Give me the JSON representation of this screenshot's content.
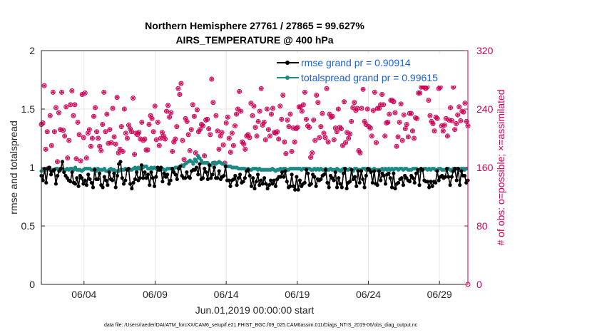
{
  "colors": {
    "rmse": "#000000",
    "spread": "#1b8a84",
    "obs": "#cc0055",
    "legend_text": "#1a5fd6",
    "grid": "#e6e6e6"
  },
  "footnote": "data file: /Users/raeder/DAI/ATM_forcXX/CAM6_setup/f.e21.FHIST_BGC.f09_025.CAM6assim.011/Diags_NTrS_2019-06/obs_diag_output.nc",
  "chart_data": {
    "type": "line",
    "title": [
      "Northern Hemisphere 27761 / 27865 = 99.627%",
      "AIRS_TEMPERATURE @ 400 hPa"
    ],
    "xlabel": "Jun.01,2019 00:00:00 start",
    "ylabel_left": "rmse and totalspread",
    "ylabel_right": "# of obs: o=possible; ×=assimilated",
    "x_range": [
      1.0,
      31.0
    ],
    "x_ticks": [
      {
        "day": 4,
        "label": "06/04"
      },
      {
        "day": 9,
        "label": "06/09"
      },
      {
        "day": 14,
        "label": "06/14"
      },
      {
        "day": 19,
        "label": "06/19"
      },
      {
        "day": 24,
        "label": "06/24"
      },
      {
        "day": 29,
        "label": "06/29"
      }
    ],
    "ylim_left": [
      0,
      2
    ],
    "yticks_left": [
      "0",
      "0.5",
      "1",
      "1.5",
      "2"
    ],
    "ylim_right": [
      0,
      320
    ],
    "yticks_right": [
      "0",
      "80",
      "160",
      "240",
      "320"
    ],
    "legend": {
      "location": "top-right",
      "entries": [
        "rmse grand pr = 0.90914",
        "totalspread grand pr = 0.99615"
      ]
    },
    "series": [
      {
        "name": "rmse",
        "values": [
          0.93,
          0.89,
          0.99,
          0.87,
          0.99,
          1.0,
          0.94,
          0.97,
          0.98,
          0.86,
          0.93,
          0.97,
          0.99,
          1.05,
          0.96,
          0.93,
          0.91,
          0.89,
          0.88,
          0.96,
          0.87,
          0.86,
          0.91,
          0.84,
          0.93,
          0.91,
          0.86,
          0.89,
          0.85,
          0.94,
          0.9,
          0.87,
          0.83,
          0.98,
          0.9,
          0.9,
          0.95,
          0.85,
          0.83,
          0.92,
          0.89,
          0.85,
          0.96,
          0.9,
          0.89,
          0.95,
          0.83,
          0.93,
          1.03,
          1.05,
          0.91,
          0.86,
          0.89,
          0.98,
          0.99,
          0.86,
          0.82,
          0.87,
          0.9,
          0.96,
          0.89,
          0.91,
          1.02,
          0.91,
          0.96,
          0.91,
          0.94,
          0.85,
          0.96,
          0.91,
          0.84,
          0.92,
          1.0,
          0.98,
          1.0,
          0.88,
          0.95,
          0.92,
          0.94,
          0.86,
          0.89,
          0.99,
          0.96,
          0.94,
          0.9,
          0.99,
          1.01,
          0.93,
          0.91,
          0.91,
          0.96,
          0.92,
          0.91,
          0.97,
          0.98,
          0.98,
          1.0,
          0.94,
          1.03,
          0.9,
          0.91,
          0.99,
          0.96,
          0.9,
          1.02,
          0.91,
          0.94,
          1.0,
          0.91,
          0.91,
          0.97,
          0.9,
          0.92,
          0.93,
          1.01,
          0.89,
          0.89,
          0.84,
          0.89,
          0.9,
          0.93,
          0.85,
          0.91,
          0.94,
          0.87,
          0.88,
          0.91,
          0.97,
          0.98,
          0.93,
          0.84,
          0.91,
          0.82,
          0.88,
          0.94,
          0.85,
          0.89,
          0.86,
          0.91,
          0.86,
          0.82,
          0.85,
          0.89,
          0.86,
          0.89,
          0.84,
          0.9,
          0.92,
          0.92,
          0.96,
          0.92,
          0.97,
          0.88,
          0.83,
          0.84,
          0.94,
          0.84,
          0.81,
          0.92,
          0.81,
          0.89,
          0.84,
          0.86,
          0.87,
          0.98,
          0.95,
          0.85,
          0.86,
          0.94,
          0.92,
          0.84,
          0.9,
          0.89,
          0.9,
          0.93,
          0.94,
          0.98,
          0.87,
          0.83,
          0.93,
          0.91,
          0.89,
          0.96,
          0.83,
          0.91,
          0.86,
          0.83,
          0.95,
          0.99,
          0.82,
          0.87,
          0.88,
          0.98,
          0.9,
          0.92,
          0.84,
          0.97,
          0.87,
          0.97,
          0.9,
          0.83,
          0.93,
          0.99,
          0.98,
          0.96,
          0.87,
          0.97,
          0.86,
          0.85,
          0.97,
          0.89,
          0.95,
          0.93,
          0.86,
          0.94,
          0.95,
          0.91,
          0.83,
          0.95,
          0.82,
          0.86,
          0.87,
          0.9,
          0.91,
          0.85,
          0.93,
          0.91,
          0.89,
          0.88,
          0.93,
          0.91,
          0.87,
          0.95,
          0.98,
          0.85,
          0.99,
          0.98,
          0.89,
          0.88,
          0.88,
          0.83,
          0.88,
          0.84,
          0.88,
          0.87,
          0.97,
          0.89,
          0.92,
          0.93,
          0.91,
          0.92,
          0.99,
          0.92,
          0.85,
          0.92,
          0.97,
          0.99,
          0.89,
          0.99,
          0.85,
          0.97,
          0.93,
          0.93,
          0.87,
          0.89
        ]
      },
      {
        "name": "totalspread",
        "values": [
          0.97,
          0.98,
          0.98,
          0.98,
          0.99,
          0.99,
          0.97,
          0.98,
          0.98,
          0.99,
          0.99,
          0.97,
          0.98,
          0.99,
          0.98,
          0.98,
          0.99,
          0.98,
          0.99,
          0.99,
          0.98,
          1.0,
          0.98,
          0.98,
          0.98,
          0.97,
          0.98,
          0.99,
          0.99,
          0.99,
          0.99,
          0.98,
          0.98,
          0.99,
          0.97,
          0.99,
          0.98,
          0.98,
          0.98,
          0.99,
          0.97,
          0.97,
          0.98,
          0.99,
          0.98,
          0.98,
          0.97,
          0.97,
          0.97,
          0.98,
          0.98,
          0.98,
          0.99,
          0.98,
          0.99,
          0.98,
          0.98,
          0.99,
          1.0,
          0.98,
          1.0,
          0.99,
          1.0,
          1.0,
          1.01,
          1.01,
          0.99,
          0.99,
          1.0,
          0.99,
          1.0,
          0.99,
          0.98,
          0.99,
          0.98,
          0.99,
          0.98,
          0.98,
          0.99,
          0.99,
          0.99,
          0.99,
          0.99,
          1.0,
          1.0,
          1.0,
          1.01,
          1.02,
          1.01,
          1.03,
          1.04,
          1.05,
          1.06,
          1.05,
          1.03,
          1.07,
          1.05,
          1.1,
          1.08,
          1.06,
          1.04,
          1.04,
          1.04,
          1.04,
          1.02,
          1.02,
          1.04,
          1.04,
          1.03,
          1.04,
          1.05,
          1.04,
          1.03,
          1.03,
          1.01,
          1.01,
          1.01,
          1.01,
          1.0,
          1.0,
          1.0,
          1.0,
          0.99,
          0.99,
          0.99,
          0.99,
          0.99,
          0.98,
          0.99,
          0.98,
          0.98,
          0.99,
          0.99,
          0.99,
          0.98,
          0.99,
          0.98,
          0.98,
          0.98,
          0.98,
          0.98,
          0.98,
          0.98,
          0.99,
          0.98,
          0.97,
          0.98,
          0.98,
          0.99,
          0.98,
          0.99,
          0.99,
          0.98,
          0.98,
          0.99,
          0.99,
          0.99,
          0.99,
          0.99,
          0.99,
          0.99,
          0.98,
          0.99,
          0.99,
          0.99,
          0.99,
          0.99,
          0.98,
          0.98,
          0.99,
          0.98,
          0.99,
          0.98,
          0.99,
          0.98,
          0.98,
          0.99,
          0.98,
          0.98,
          0.99,
          0.98,
          0.98,
          0.98,
          0.99,
          0.98,
          0.97,
          0.98,
          0.99,
          0.98,
          0.98,
          0.98,
          0.99,
          0.98,
          0.97,
          0.99,
          0.99,
          0.98,
          0.98,
          0.98,
          0.99,
          0.99,
          0.98,
          0.98,
          0.99,
          0.98,
          0.98,
          0.99,
          0.98,
          0.98,
          0.98,
          0.98,
          0.99,
          0.98,
          0.99,
          0.98,
          0.99,
          0.98,
          0.99,
          0.98,
          0.99,
          0.99,
          0.98,
          0.99,
          0.99,
          0.98,
          0.99,
          0.99,
          0.98,
          0.98,
          0.98,
          0.99,
          0.99,
          0.99,
          0.98,
          0.97,
          0.98,
          0.98,
          0.99,
          0.99,
          0.98,
          0.99,
          0.98,
          0.99,
          0.99,
          0.98,
          0.98,
          0.99,
          0.99,
          0.98,
          0.98,
          0.98,
          0.98,
          0.99,
          0.98,
          0.97,
          0.99,
          0.98,
          0.99,
          0.99,
          0.98,
          0.99,
          0.99,
          0.98,
          0.99
        ]
      },
      {
        "name": "obs_possible",
        "marker": "o",
        "values": [
          219,
          221,
          272,
          185,
          209,
          159,
          231,
          190,
          263,
          209,
          242,
          168,
          235,
          212,
          263,
          211,
          203,
          243,
          173,
          197,
          246,
          265,
          231,
          246,
          172,
          222,
          205,
          169,
          260,
          201,
          262,
          173,
          207,
          212,
          189,
          200,
          230,
          242,
          209,
          200,
          189,
          183,
          219,
          263,
          209,
          233,
          193,
          212,
          194,
          241,
          202,
          192,
          256,
          180,
          185,
          216,
          182,
          240,
          207,
          200,
          218,
          213,
          209,
          255,
          178,
          207,
          205,
          208,
          199,
          222,
          197,
          199,
          184,
          184,
          219,
          231,
          227,
          209,
          244,
          198,
          222,
          190,
          200,
          208,
          203,
          199,
          237,
          245,
          229,
          235,
          182,
          195,
          199,
          216,
          268,
          260,
          275,
          197,
          171,
          227,
          223,
          205,
          183,
          212,
          246,
          230,
          180,
          239,
          209,
          212,
          219,
          217,
          176,
          225,
          226,
          213,
          205,
          281,
          249,
          166,
          231,
          210,
          185,
          203,
          208,
          191,
          166,
          221,
          229,
          200,
          181,
          207,
          190,
          217,
          233,
          240,
          264,
          237,
          195,
          192,
          185,
          203,
          205,
          201,
          248,
          231,
          244,
          215,
          203,
          223,
          237,
          268,
          218,
          222,
          198,
          240,
          212,
          203,
          233,
          241,
          208,
          207,
          209,
          199,
          244,
          226,
          259,
          195,
          179,
          225,
          216,
          233,
          182,
          214,
          195,
          213,
          215,
          243,
          243,
          237,
          246,
          263,
          226,
          217,
          215,
          174,
          180,
          225,
          197,
          259,
          249,
          201,
          216,
          234,
          207,
          201,
          268,
          195,
          233,
          229,
          230,
          198,
          214,
          209,
          240,
          215,
          213,
          190,
          250,
          194,
          208,
          200,
          206,
          223,
          242,
          249,
          238,
          241,
          183,
          180,
          241,
          267,
          223,
          219,
          240,
          216,
          214,
          203,
          238,
          263,
          194,
          241,
          241,
          246,
          260,
          246,
          203,
          221,
          222,
          233,
          252,
          252,
          250,
          235,
          189,
          202,
          222,
          247,
          197,
          232,
          213,
          219,
          202,
          234,
          234,
          210,
          200,
          228,
          227,
          262,
          262,
          270,
          271,
          270,
          268,
          270,
          252,
          231,
          223,
          220,
          210,
          229,
          227,
          268,
          270,
          217,
          210,
          218,
          227,
          203,
          225,
          242,
          224,
          270,
          212,
          220,
          232,
          243,
          224,
          237,
          236,
          248,
          223,
          217
        ]
      }
    ]
  }
}
